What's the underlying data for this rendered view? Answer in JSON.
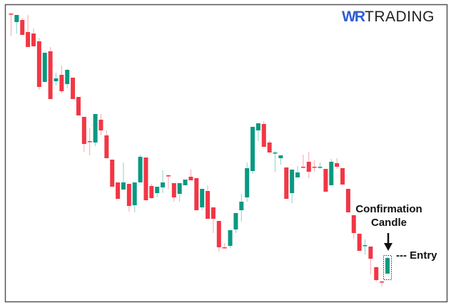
{
  "logo": {
    "brand_part": "WR",
    "text_part": "TRADING",
    "brand_color": "#2f5fd0"
  },
  "chart_data": {
    "type": "candlestick",
    "title": "",
    "xlabel": "",
    "ylabel": "",
    "grid": false,
    "colors": {
      "up": "#089981",
      "down": "#f23645",
      "frame": "#555555"
    },
    "candle_fields": [
      "open",
      "high",
      "low",
      "close"
    ],
    "candles": [
      [
        431,
        431,
        400,
        430
      ],
      [
        419,
        429,
        403,
        429
      ],
      [
        422,
        425,
        401,
        401
      ],
      [
        405,
        429,
        384,
        384
      ],
      [
        403,
        410,
        385,
        385
      ],
      [
        392,
        397,
        324,
        328
      ],
      [
        335,
        376,
        335,
        376
      ],
      [
        378,
        384,
        311,
        311
      ],
      [
        336,
        348,
        330,
        340
      ],
      [
        345,
        358,
        319,
        322
      ],
      [
        332,
        353,
        326,
        352
      ],
      [
        341,
        341,
        311,
        311
      ],
      [
        314,
        314,
        288,
        288
      ],
      [
        286,
        286,
        237,
        248
      ],
      [
        252,
        270,
        232,
        251
      ],
      [
        250,
        290,
        245,
        290
      ],
      [
        282,
        290,
        260,
        267
      ],
      [
        260,
        267,
        228,
        228
      ],
      [
        226,
        226,
        188,
        188
      ],
      [
        194,
        194,
        171,
        171
      ],
      [
        184,
        222,
        184,
        194
      ],
      [
        192,
        192,
        153,
        161
      ],
      [
        162,
        194,
        152,
        194
      ],
      [
        194,
        233,
        194,
        230
      ],
      [
        229,
        229,
        169,
        169
      ],
      [
        189,
        192,
        171,
        172
      ],
      [
        179,
        188,
        173,
        188
      ],
      [
        187,
        211,
        179,
        194
      ],
      [
        204,
        205,
        185,
        203
      ],
      [
        193,
        193,
        167,
        173
      ],
      [
        178,
        193,
        167,
        193
      ],
      [
        190,
        198,
        190,
        198
      ],
      [
        202,
        212,
        197,
        197
      ],
      [
        200,
        200,
        155,
        155
      ],
      [
        159,
        185,
        155,
        185
      ],
      [
        182,
        190,
        143,
        143
      ],
      [
        159,
        159,
        123,
        143
      ],
      [
        140,
        140,
        97,
        103
      ],
      [
        103,
        109,
        102,
        102
      ],
      [
        105,
        127,
        102,
        127
      ],
      [
        128,
        151,
        123,
        151
      ],
      [
        155,
        178,
        139,
        167
      ],
      [
        173,
        222,
        167,
        214
      ],
      [
        210,
        272,
        206,
        272
      ],
      [
        267,
        277,
        252,
        277
      ],
      [
        276,
        280,
        244,
        244
      ],
      [
        250,
        253,
        236,
        236
      ],
      [
        235,
        238,
        209,
        236
      ],
      [
        228,
        232,
        219,
        232
      ],
      [
        215,
        215,
        171,
        171
      ],
      [
        179,
        212,
        165,
        212
      ],
      [
        201,
        217,
        201,
        208
      ],
      [
        216,
        233,
        214,
        215
      ],
      [
        223,
        237,
        200,
        209
      ],
      [
        216,
        225,
        209,
        215
      ],
      [
        215,
        222,
        213,
        216
      ],
      [
        213,
        213,
        181,
        181
      ],
      [
        190,
        227,
        190,
        223
      ],
      [
        221,
        228,
        213,
        216
      ],
      [
        214,
        214,
        191,
        191
      ],
      [
        185,
        185,
        152,
        152
      ],
      [
        148,
        148,
        115,
        123
      ],
      [
        122,
        122,
        98,
        98
      ],
      [
        105,
        114,
        93,
        106
      ],
      [
        104,
        104,
        65,
        87
      ],
      [
        75,
        76,
        55,
        57
      ],
      [
        55,
        56,
        48,
        54
      ],
      [
        66,
        90,
        66,
        88
      ]
    ],
    "highlighted_candle_index": 67,
    "annotations": {
      "confirmation_line1": "Confirmation",
      "confirmation_line2": "Candle",
      "entry": "--- Entry"
    }
  }
}
